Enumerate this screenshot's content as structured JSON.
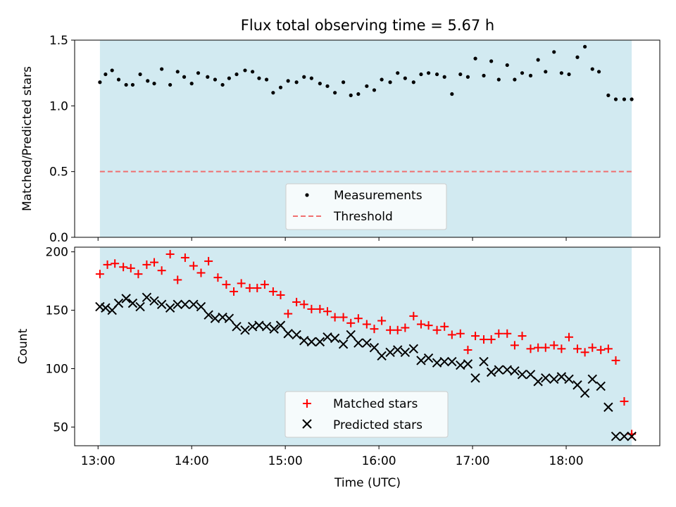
{
  "title": "Flux total observing time = 5.67 h",
  "colors": {
    "shade": "#add8e6",
    "threshold": "#f07070",
    "matched": "#ff0000",
    "predicted": "#000000",
    "measurement": "#000000"
  },
  "chart_data": [
    {
      "type": "scatter",
      "ylabel": "Matched/Predicted stars",
      "xlim_hours": [
        12.75,
        19.0
      ],
      "ylim": [
        0.0,
        1.5
      ],
      "yticks": [
        "0.0",
        "0.5",
        "1.0",
        "1.5"
      ],
      "shaded_span_hours": [
        13.02,
        18.7
      ],
      "threshold": 0.5,
      "legend_position": "lower center",
      "series": [
        {
          "name": "Measurements",
          "x": [
            13.02,
            13.08,
            13.15,
            13.22,
            13.3,
            13.37,
            13.45,
            13.53,
            13.6,
            13.68,
            13.77,
            13.85,
            13.92,
            14.0,
            14.07,
            14.17,
            14.25,
            14.33,
            14.4,
            14.48,
            14.57,
            14.65,
            14.72,
            14.8,
            14.87,
            14.95,
            15.03,
            15.12,
            15.2,
            15.28,
            15.37,
            15.45,
            15.53,
            15.62,
            15.7,
            15.78,
            15.87,
            15.95,
            16.03,
            16.12,
            16.2,
            16.28,
            16.37,
            16.45,
            16.53,
            16.62,
            16.7,
            16.78,
            16.87,
            16.95,
            17.03,
            17.12,
            17.2,
            17.28,
            17.37,
            17.45,
            17.53,
            17.62,
            17.7,
            17.78,
            17.87,
            17.95,
            18.03,
            18.12,
            18.2,
            18.28,
            18.35,
            18.45,
            18.53,
            18.62,
            18.7
          ],
          "values": [
            1.18,
            1.24,
            1.27,
            1.2,
            1.16,
            1.16,
            1.24,
            1.19,
            1.17,
            1.28,
            1.16,
            1.26,
            1.22,
            1.17,
            1.25,
            1.22,
            1.2,
            1.16,
            1.21,
            1.24,
            1.27,
            1.26,
            1.21,
            1.2,
            1.1,
            1.14,
            1.19,
            1.18,
            1.22,
            1.21,
            1.17,
            1.15,
            1.1,
            1.18,
            1.08,
            1.09,
            1.15,
            1.12,
            1.2,
            1.18,
            1.25,
            1.21,
            1.18,
            1.24,
            1.25,
            1.24,
            1.22,
            1.09,
            1.24,
            1.22,
            1.36,
            1.23,
            1.34,
            1.2,
            1.31,
            1.2,
            1.25,
            1.23,
            1.35,
            1.26,
            1.41,
            1.25,
            1.24,
            1.37,
            1.45,
            1.28,
            1.26,
            1.08,
            1.05,
            1.05,
            1.05
          ]
        },
        {
          "name": "Threshold",
          "style": "dashed",
          "y": 0.5
        }
      ]
    },
    {
      "type": "scatter",
      "ylabel": "Count",
      "xlabel": "Time (UTC)",
      "xlim_hours": [
        12.75,
        19.0
      ],
      "ylim": [
        34,
        204
      ],
      "yticks": [
        "50",
        "100",
        "150",
        "200"
      ],
      "xticks": [
        "13:00",
        "14:00",
        "15:00",
        "16:00",
        "17:00",
        "18:00"
      ],
      "shaded_span_hours": [
        13.02,
        18.7
      ],
      "legend_position": "lower center",
      "series": [
        {
          "name": "Matched stars",
          "marker": "plus",
          "x": [
            13.02,
            13.1,
            13.18,
            13.27,
            13.35,
            13.43,
            13.52,
            13.6,
            13.68,
            13.77,
            13.85,
            13.93,
            14.02,
            14.1,
            14.18,
            14.28,
            14.37,
            14.45,
            14.53,
            14.62,
            14.7,
            14.78,
            14.87,
            14.95,
            15.03,
            15.12,
            15.2,
            15.28,
            15.37,
            15.45,
            15.53,
            15.62,
            15.7,
            15.78,
            15.87,
            15.95,
            16.03,
            16.12,
            16.2,
            16.28,
            16.37,
            16.45,
            16.53,
            16.62,
            16.7,
            16.78,
            16.87,
            16.95,
            17.03,
            17.12,
            17.2,
            17.28,
            17.37,
            17.45,
            17.53,
            17.62,
            17.7,
            17.78,
            17.87,
            17.95,
            18.03,
            18.12,
            18.2,
            18.28,
            18.37,
            18.45,
            18.53,
            18.62,
            18.7
          ],
          "values": [
            181,
            189,
            190,
            187,
            186,
            181,
            189,
            191,
            184,
            198,
            176,
            195,
            188,
            182,
            192,
            178,
            172,
            166,
            173,
            169,
            169,
            172,
            166,
            163,
            147,
            157,
            155,
            151,
            151,
            149,
            144,
            144,
            139,
            143,
            138,
            134,
            141,
            133,
            133,
            135,
            145,
            138,
            137,
            133,
            136,
            129,
            130,
            116,
            128,
            125,
            125,
            130,
            130,
            120,
            128,
            117,
            118,
            118,
            120,
            117,
            127,
            117,
            114,
            118,
            116,
            117,
            107,
            72,
            44
          ]
        },
        {
          "name": "Predicted stars",
          "marker": "cross",
          "x": [
            13.02,
            13.08,
            13.15,
            13.22,
            13.3,
            13.37,
            13.45,
            13.52,
            13.6,
            13.68,
            13.77,
            13.85,
            13.93,
            14.02,
            14.1,
            14.18,
            14.25,
            14.33,
            14.4,
            14.48,
            14.57,
            14.65,
            14.72,
            14.8,
            14.88,
            14.95,
            15.03,
            15.12,
            15.2,
            15.28,
            15.37,
            15.45,
            15.53,
            15.62,
            15.7,
            15.78,
            15.87,
            15.95,
            16.03,
            16.12,
            16.2,
            16.28,
            16.37,
            16.45,
            16.53,
            16.62,
            16.7,
            16.78,
            16.87,
            16.95,
            17.03,
            17.12,
            17.2,
            17.28,
            17.37,
            17.45,
            17.53,
            17.62,
            17.7,
            17.78,
            17.87,
            17.95,
            18.03,
            18.12,
            18.2,
            18.28,
            18.37,
            18.45,
            18.53,
            18.62,
            18.7
          ],
          "values": [
            153,
            152,
            150,
            156,
            160,
            156,
            153,
            161,
            158,
            155,
            152,
            155,
            155,
            155,
            153,
            146,
            143,
            144,
            143,
            136,
            133,
            136,
            137,
            136,
            134,
            137,
            130,
            129,
            124,
            123,
            123,
            127,
            126,
            121,
            129,
            122,
            122,
            118,
            111,
            114,
            116,
            114,
            117,
            107,
            109,
            105,
            106,
            106,
            103,
            104,
            92,
            106,
            97,
            99,
            99,
            98,
            95,
            95,
            89,
            92,
            91,
            93,
            91,
            86,
            79,
            91,
            85,
            67,
            42,
            42,
            42
          ]
        }
      ]
    }
  ]
}
